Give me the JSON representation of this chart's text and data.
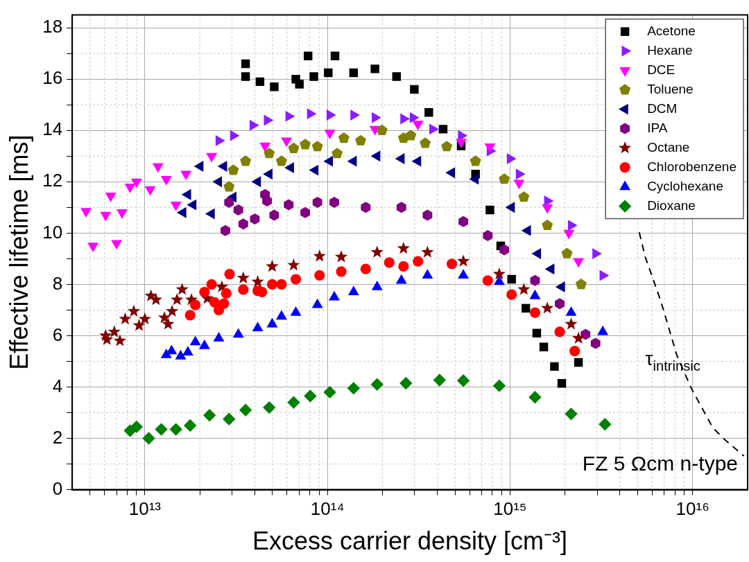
{
  "chart_data": {
    "type": "scatter",
    "xlabel": "Excess carrier density [cm⁻³]",
    "ylabel": "Effective lifetime [ms]",
    "log": "x",
    "grid": true,
    "legend": "top right",
    "xlim": [
      4000000000000.0,
      2e+16
    ],
    "ylim": [
      0,
      18.5
    ],
    "xticks": [
      {
        "value": 5000000000000.0,
        "label": null
      },
      {
        "value": 6000000000000.0,
        "label": null
      },
      {
        "value": 7000000000000.0,
        "label": null
      },
      {
        "value": 8000000000000.0,
        "label": null
      },
      {
        "value": 9000000000000.0,
        "label": null
      },
      {
        "value": 10000000000000.0,
        "label": "10¹³"
      },
      {
        "value": 20000000000000.0,
        "label": null
      },
      {
        "value": 30000000000000.0,
        "label": null
      },
      {
        "value": 40000000000000.0,
        "label": null
      },
      {
        "value": 50000000000000.0,
        "label": null
      },
      {
        "value": 60000000000000.0,
        "label": null
      },
      {
        "value": 70000000000000.0,
        "label": null
      },
      {
        "value": 80000000000000.0,
        "label": null
      },
      {
        "value": 90000000000000.0,
        "label": null
      },
      {
        "value": 100000000000000.0,
        "label": "10¹⁴"
      },
      {
        "value": 200000000000000.0,
        "label": null
      },
      {
        "value": 300000000000000.0,
        "label": null
      },
      {
        "value": 400000000000000.0,
        "label": null
      },
      {
        "value": 500000000000000.0,
        "label": null
      },
      {
        "value": 600000000000000.0,
        "label": null
      },
      {
        "value": 700000000000000.0,
        "label": null
      },
      {
        "value": 800000000000000.0,
        "label": null
      },
      {
        "value": 900000000000000.0,
        "label": null
      },
      {
        "value": 1000000000000000.0,
        "label": "10¹⁵"
      },
      {
        "value": 2000000000000000.0,
        "label": null
      },
      {
        "value": 3000000000000000.0,
        "label": null
      },
      {
        "value": 4000000000000000.0,
        "label": null
      },
      {
        "value": 5000000000000000.0,
        "label": null
      },
      {
        "value": 6000000000000000.0,
        "label": null
      },
      {
        "value": 7000000000000000.0,
        "label": null
      },
      {
        "value": 8000000000000000.0,
        "label": null
      },
      {
        "value": 9000000000000000.0,
        "label": null
      },
      {
        "value": 1e+16,
        "label": "10¹⁶"
      }
    ],
    "yticks": [
      0,
      {
        "value": 1,
        "label": null
      },
      2,
      {
        "value": 3,
        "label": null
      },
      4,
      {
        "value": 5,
        "label": null
      },
      6,
      {
        "value": 7,
        "label": null
      },
      8,
      {
        "value": 9,
        "label": null
      },
      10,
      {
        "value": 11,
        "label": null
      },
      12,
      {
        "value": 13,
        "label": null
      },
      14,
      {
        "value": 15,
        "label": null
      },
      16,
      {
        "value": 17,
        "label": null
      },
      18
    ],
    "series": [
      {
        "name": "Acetone",
        "color": "#000000",
        "marker": "square",
        "x": [
          35600000000000.0,
          35600000000000.0,
          42700000000000.0,
          51100000000000.0,
          67100000000000.0,
          70200000000000.0,
          78300000000000.0,
          84200000000000.0,
          101000000000000.0,
          110000000000000.0,
          139000000000000.0,
          182000000000000.0,
          239000000000000.0,
          299000000000000.0,
          359000000000000.0,
          430000000000000.0,
          540000000000000.0,
          647000000000000.0,
          776000000000000.0,
          889000000000000.0,
          1020000000000000.0,
          1220000000000000.0,
          1400000000000000.0,
          1530000000000000.0,
          1750000000000000.0,
          1920000000000000.0,
          2370000000000000.0
        ],
        "values": [
          16.6,
          16.1,
          15.9,
          15.7,
          16.0,
          15.8,
          16.9,
          16.1,
          16.25,
          16.9,
          16.25,
          16.4,
          16.1,
          15.6,
          14.7,
          14.05,
          13.4,
          12.3,
          10.9,
          9.5,
          8.2,
          7.07,
          6.1,
          5.56,
          4.8,
          4.14,
          4.96
        ]
      },
      {
        "name": "Hexane",
        "color": "#8b1cff",
        "marker": "triangle-right",
        "x": [
          25400000000000.0,
          30500000000000.0,
          39000000000000.0,
          46700000000000.0,
          61300000000000.0,
          80500000000000.0,
          103000000000000.0,
          139000000000000.0,
          182000000000000.0,
          261000000000000.0,
          294000000000000.0,
          376000000000000.0,
          540000000000000.0,
          776000000000000.0,
          1000000000000000.0,
          1120000000000000.0,
          1600000000000000.0,
          2160000000000000.0,
          2940000000000000.0,
          3220000000000000.0
        ],
        "values": [
          13.6,
          13.8,
          14.2,
          14.4,
          14.55,
          14.65,
          14.6,
          14.6,
          14.5,
          14.45,
          14.5,
          14.05,
          13.8,
          13.2,
          12.9,
          12.3,
          11.25,
          10.3,
          9.2,
          8.35
        ]
      },
      {
        "name": "DCE",
        "color": "#ff00ff",
        "marker": "triangle-down",
        "x": [
          4760000000000.0,
          5200000000000.0,
          6100000000000.0,
          6500000000000.0,
          7000000000000.0,
          7500000000000.0,
          8300000000000.0,
          9000000000000.0,
          10700000000000.0,
          11800000000000.0,
          13100000000000.0,
          14800000000000.0,
          16800000000000.0,
          23200000000000.0,
          45500000000000.0,
          59700000000000.0,
          103000000000000.0,
          182000000000000.0,
          313000000000000.0,
          540000000000000.0,
          776000000000000.0,
          1120000000000000.0,
          1600000000000000.0,
          2100000000000000.0,
          2370000000000000.0
        ],
        "values": [
          10.85,
          9.5,
          10.7,
          11.45,
          9.6,
          10.8,
          11.8,
          12.0,
          11.7,
          12.6,
          12.1,
          11.1,
          12.3,
          13.0,
          13.4,
          13.6,
          13.9,
          14.05,
          14.25,
          13.55,
          13.37,
          11.95,
          11.0,
          10.0,
          8.9
        ]
      },
      {
        "name": "Toluene",
        "color": "#808000",
        "x": [
          28900000000000.0,
          30500000000000.0,
          35600000000000.0,
          48000000000000.0,
          56000000000000.0,
          65300000000000.0,
          75500000000000.0,
          88100000000000.0,
          113000000000000.0,
          123000000000000.0,
          152000000000000.0,
          199000000000000.0,
          261000000000000.0,
          286000000000000.0,
          343000000000000.0,
          450000000000000.0,
          647000000000000.0,
          930000000000000.0,
          1190000000000000.0,
          1600000000000000.0,
          2050000000000000.0,
          2450000000000000.0
        ],
        "values": [
          11.8,
          12.45,
          12.8,
          13.1,
          12.8,
          13.3,
          13.45,
          13.37,
          13.1,
          13.7,
          13.6,
          14.0,
          13.7,
          13.8,
          13.5,
          13.37,
          12.8,
          12.1,
          11.4,
          10.3,
          9.2,
          8.0
        ]
      },
      {
        "name": "DCM",
        "color": "#000080",
        "marker": "triangle-left",
        "x": [
          16200000000000.0,
          17200000000000.0,
          18400000000000.0,
          20100000000000.0,
          23200000000000.0,
          25400000000000.0,
          27100000000000.0,
          30500000000000.0,
          41500000000000.0,
          48000000000000.0,
          63000000000000.0,
          85700000000000.0,
          103000000000000.0,
          139000000000000.0,
          187000000000000.0,
          254000000000000.0,
          313000000000000.0,
          480000000000000.0,
          647000000000000.0,
          1020000000000000.0,
          1250000000000000.0,
          1420000000000000.0,
          1680000000000000.0,
          1920000000000000.0
        ],
        "values": [
          10.8,
          11.5,
          11.1,
          12.6,
          10.75,
          12.0,
          12.6,
          11.4,
          12.0,
          12.3,
          12.55,
          12.45,
          12.8,
          12.8,
          13.0,
          12.9,
          12.8,
          12.35,
          12.1,
          11.0,
          10.1,
          9.2,
          8.6,
          7.9
        ]
      },
      {
        "name": "IPA",
        "color": "#800080",
        "x": [
          27600000000000.0,
          28900000000000.0,
          32500000000000.0,
          34600000000000.0,
          40000000000000.0,
          45500000000000.0,
          46700000000000.0,
          51100000000000.0,
          61300000000000.0,
          75500000000000.0,
          88100000000000.0,
          109000000000000.0,
          162000000000000.0,
          254000000000000.0,
          353000000000000.0,
          555000000000000.0,
          755000000000000.0,
          930000000000000.0,
          1370000000000000.0,
          1870000000000000.0,
          2590000000000000.0,
          2940000000000000.0
        ],
        "values": [
          10.1,
          11.2,
          10.9,
          10.35,
          10.55,
          11.5,
          11.25,
          10.7,
          11.1,
          10.8,
          11.2,
          11.2,
          11.0,
          11.0,
          10.7,
          10.45,
          9.9,
          9.35,
          8.15,
          7.25,
          6.05,
          5.7
        ]
      },
      {
        "name": "Octane",
        "color": "#800000",
        "marker": "star",
        "x": [
          6100000000000.0,
          6200000000000.0,
          6800000000000.0,
          7300000000000.0,
          7800000000000.0,
          8700000000000.0,
          9300000000000.0,
          10000000000000.0,
          10800000000000.0,
          11500000000000.0,
          12800000000000.0,
          13400000000000.0,
          14100000000000.0,
          15000000000000.0,
          16000000000000.0,
          18000000000000.0,
          22000000000000.0,
          26400000000000.0,
          34600000000000.0,
          41500000000000.0,
          49800000000000.0,
          65300000000000.0,
          90500000000000.0,
          119000000000000.0,
          187000000000000.0,
          261000000000000.0,
          353000000000000.0,
          555000000000000.0,
          873000000000000.0,
          1190000000000000.0,
          1600000000000000.0,
          2160000000000000.0,
          2370000000000000.0
        ],
        "values": [
          6.0,
          5.85,
          6.15,
          5.8,
          6.65,
          6.95,
          6.4,
          6.65,
          7.55,
          7.4,
          6.7,
          6.45,
          6.95,
          7.4,
          7.8,
          7.4,
          7.45,
          7.9,
          8.25,
          8.1,
          8.7,
          8.75,
          9.1,
          9.07,
          9.25,
          9.4,
          9.25,
          8.9,
          8.4,
          7.8,
          7.07,
          6.45,
          5.9
        ]
      },
      {
        "name": "Chlorobenzene",
        "color": "#ff0000",
        "marker": "circle",
        "x": [
          17700000000000.0,
          18900000000000.0,
          21200000000000.0,
          23200000000000.0,
          24100000000000.0,
          25400000000000.0,
          27100000000000.0,
          27900000000000.0,
          29100000000000.0,
          34600000000000.0,
          41500000000000.0,
          43800000000000.0,
          49800000000000.0,
          56000000000000.0,
          67100000000000.0,
          90500000000000.0,
          119000000000000.0,
          162000000000000.0,
          218000000000000.0,
          261000000000000.0,
          313000000000000.0,
          480000000000000.0,
          755000000000000.0,
          1020000000000000.0,
          1370000000000000.0,
          1870000000000000.0,
          2260000000000000.0
        ],
        "values": [
          6.8,
          7.2,
          7.7,
          8.0,
          7.3,
          7.0,
          7.25,
          7.65,
          8.4,
          7.8,
          7.75,
          7.7,
          8.0,
          8.0,
          8.2,
          8.35,
          8.5,
          8.6,
          8.85,
          8.7,
          8.9,
          8.8,
          8.15,
          7.6,
          6.9,
          6.15,
          5.4
        ]
      },
      {
        "name": "Cyclohexane",
        "color": "#0000ff",
        "marker": "triangle",
        "x": [
          13100000000000.0,
          14000000000000.0,
          15700000000000.0,
          17200000000000.0,
          18900000000000.0,
          21200000000000.0,
          25400000000000.0,
          32500000000000.0,
          41500000000000.0,
          49800000000000.0,
          56000000000000.0,
          67100000000000.0,
          88100000000000.0,
          109000000000000.0,
          139000000000000.0,
          187000000000000.0,
          254000000000000.0,
          353000000000000.0,
          555000000000000.0,
          873000000000000.0,
          1370000000000000.0,
          2160000000000000.0,
          3220000000000000.0
        ],
        "values": [
          5.25,
          5.4,
          5.2,
          5.35,
          5.75,
          5.6,
          5.9,
          6.05,
          6.3,
          6.45,
          6.75,
          6.9,
          7.2,
          7.5,
          7.7,
          7.9,
          8.15,
          8.35,
          8.35,
          8.1,
          7.55,
          6.9,
          6.15
        ]
      },
      {
        "name": "Dioxane",
        "color": "#008000",
        "marker": "diamond",
        "x": [
          8300000000000.0,
          9000000000000.0,
          10500000000000.0,
          12300000000000.0,
          14800000000000.0,
          17700000000000.0,
          22600000000000.0,
          28900000000000.0,
          35600000000000.0,
          48000000000000.0,
          65300000000000.0,
          80500000000000.0,
          103000000000000.0,
          139000000000000.0,
          187000000000000.0,
          269000000000000.0,
          411000000000000.0,
          555000000000000.0,
          873000000000000.0,
          1370000000000000.0,
          2160000000000000.0,
          3310000000000000.0
        ],
        "values": [
          2.3,
          2.45,
          2.0,
          2.35,
          2.35,
          2.5,
          2.9,
          2.75,
          3.1,
          3.2,
          3.4,
          3.65,
          3.8,
          3.95,
          4.1,
          4.15,
          4.27,
          4.25,
          4.05,
          3.6,
          2.95,
          2.55
        ]
      },
      {
        "type": "line",
        "name": "τ$_{intrinsic}$",
        "color": "#000000",
        "line_style": "dashed",
        "marker": "none",
        "x": [
          5100000000000000.0,
          5500000000000000.0,
          6700000000000000.0,
          8200000000000000.0,
          9800000000000000.0,
          1.29e+16,
          1.5e+16,
          1.91e+16
        ],
        "values": [
          10.03,
          9.07,
          7.34,
          5.23,
          3.97,
          2.41,
          1.95,
          1.31
        ]
      }
    ],
    "annotations": [
      "FZ 5 Ωcm n-type"
    ]
  }
}
